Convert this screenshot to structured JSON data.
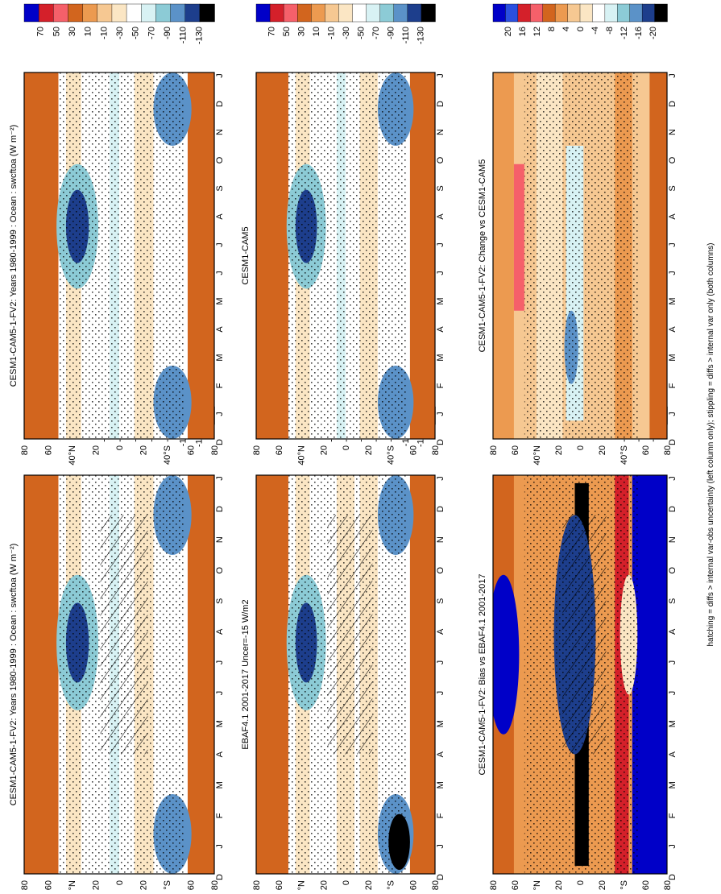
{
  "footer_note": "hatching = diffs > internal var-obs uncertainty (left column only); stippling = diffs > internal var only (both columns)",
  "colors": {
    "blue_deep": "#0000c8",
    "blue": "#2a4fe0",
    "red": "#d4202a",
    "red_light": "#f5606a",
    "orange_dark": "#d2651e",
    "orange": "#ec9a50",
    "peach": "#f6c892",
    "cream": "#fbe6c4",
    "white": "#ffffff",
    "cyan_light": "#d8f2f4",
    "teal": "#8ccbd6",
    "steel": "#5b92c8",
    "navy": "#1d3e8c",
    "black": "#000000"
  },
  "chart_data": [
    {
      "type": "heatmap",
      "title": "CESM1-CAM5-1-FV2: Years 1980-1999 : Ocean : swcftoa (W m⁻²)",
      "x_ticks": [
        "D",
        "J",
        "F",
        "M",
        "A",
        "M",
        "J",
        "J",
        "A",
        "S",
        "O",
        "N",
        "D",
        "J"
      ],
      "y_ticks": [
        "80",
        "60",
        "40°N",
        "20",
        "0",
        "20",
        "40°S",
        "60",
        "80"
      ],
      "colorbar_labels": [
        "70",
        "50",
        "30",
        "10",
        "-10",
        "-30",
        "-50",
        "-70",
        "-90",
        "-110",
        "-130"
      ],
      "pattern": "clim_model",
      "hatching": true,
      "stippling": true
    },
    {
      "type": "heatmap",
      "title": "EBAF4.1 2001-2017 Uncer=-15 W/m2",
      "x_ticks": [
        "D",
        "J",
        "F",
        "M",
        "A",
        "M",
        "J",
        "J",
        "A",
        "S",
        "O",
        "N",
        "D",
        "J"
      ],
      "y_ticks": [
        "80",
        "60",
        "40°N",
        "20",
        "0",
        "20",
        "40°S",
        "60",
        "80"
      ],
      "colorbar_labels": [
        "70",
        "50",
        "30",
        "10",
        "-10",
        "-30",
        "-50",
        "-70",
        "-90",
        "-110",
        "-130"
      ],
      "pattern": "clim_obs",
      "hatching": true,
      "stippling": true
    },
    {
      "type": "heatmap",
      "title": "CESM1-CAM5-1-FV2: Bias vs EBAF4.1 2001-2017",
      "x_ticks": [
        "D",
        "J",
        "F",
        "M",
        "A",
        "M",
        "J",
        "J",
        "A",
        "S",
        "O",
        "N",
        "D",
        "J"
      ],
      "y_ticks": [
        "80",
        "60",
        "40°N",
        "20",
        "0",
        "20",
        "40°S",
        "60",
        "80"
      ],
      "colorbar_labels": [
        "20",
        "16",
        "12",
        "8",
        "4",
        "0",
        "-4",
        "-8",
        "-12",
        "-16",
        "-20"
      ],
      "pattern": "bias",
      "hatching": true,
      "stippling": true
    },
    {
      "type": "heatmap",
      "title": "CESM1-CAM5-1-FV2: Years 1980-1999 : Ocean : swcftoa (W m⁻²)",
      "x_ticks": [
        "D",
        "J",
        "F",
        "M",
        "A",
        "M",
        "J",
        "J",
        "A",
        "S",
        "O",
        "N",
        "D",
        "J"
      ],
      "y_ticks": [
        "80",
        "60",
        "40°N",
        "20",
        "0",
        "20",
        "40°S",
        "60",
        "80"
      ],
      "colorbar_labels": [
        "70",
        "50",
        "30",
        "10",
        "-10",
        "-30",
        "-50",
        "-70",
        "-90",
        "-110",
        "-130"
      ],
      "pattern": "clim_model",
      "hatching": false,
      "stippling": true
    },
    {
      "type": "heatmap",
      "title": "CESM1-CAM5",
      "x_ticks": [
        "D",
        "J",
        "F",
        "M",
        "A",
        "M",
        "J",
        "J",
        "A",
        "S",
        "O",
        "N",
        "D",
        "J"
      ],
      "y_ticks": [
        "80",
        "60",
        "40°N",
        "20",
        "0",
        "20",
        "40°S",
        "60",
        "80"
      ],
      "colorbar_labels": [
        "70",
        "50",
        "30",
        "10",
        "-10",
        "-30",
        "-50",
        "-70",
        "-90",
        "-110",
        "-130"
      ],
      "pattern": "clim_model",
      "hatching": false,
      "stippling": true
    },
    {
      "type": "heatmap",
      "title": "CESM1-CAM5-1-FV2: Change vs CESM1-CAM5",
      "x_ticks": [
        "D",
        "J",
        "F",
        "M",
        "A",
        "M",
        "J",
        "J",
        "A",
        "S",
        "O",
        "N",
        "D",
        "J"
      ],
      "y_ticks": [
        "80",
        "60",
        "40°N",
        "20",
        "0",
        "20",
        "40°S",
        "60",
        "80"
      ],
      "colorbar_labels": [
        "20",
        "16",
        "12",
        "8",
        "4",
        "0",
        "-4",
        "-8",
        "-12",
        "-16",
        "-20"
      ],
      "pattern": "change",
      "hatching": false,
      "stippling": true
    }
  ]
}
